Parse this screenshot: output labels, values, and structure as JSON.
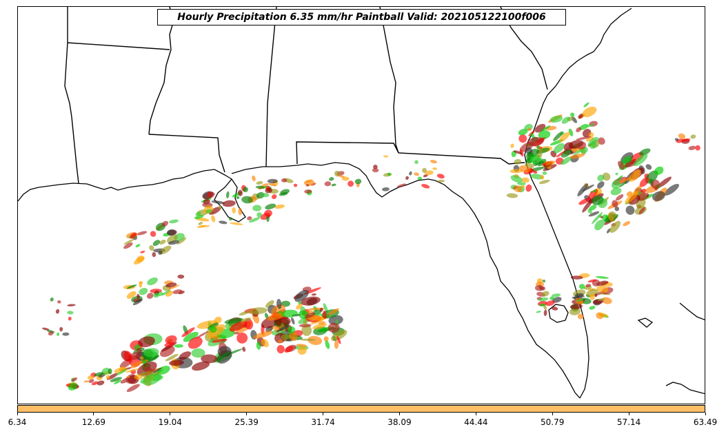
{
  "title": "Hourly Precipitation 6.35 mm/hr Paintball Valid: 202105122100f006",
  "colorbar": {
    "color": "#ffbf66",
    "ticks": [
      "6.34",
      "12.69",
      "19.04",
      "25.39",
      "31.74",
      "38.09",
      "44.44",
      "50.79",
      "57.14",
      "63.49"
    ]
  },
  "member_colors": [
    "#8b0000",
    "#ff0000",
    "#ff7f00",
    "#ffa500",
    "#9a9a1a",
    "#008000",
    "#00cc00",
    "#32cd32",
    "#333333",
    "#b22222"
  ]
}
